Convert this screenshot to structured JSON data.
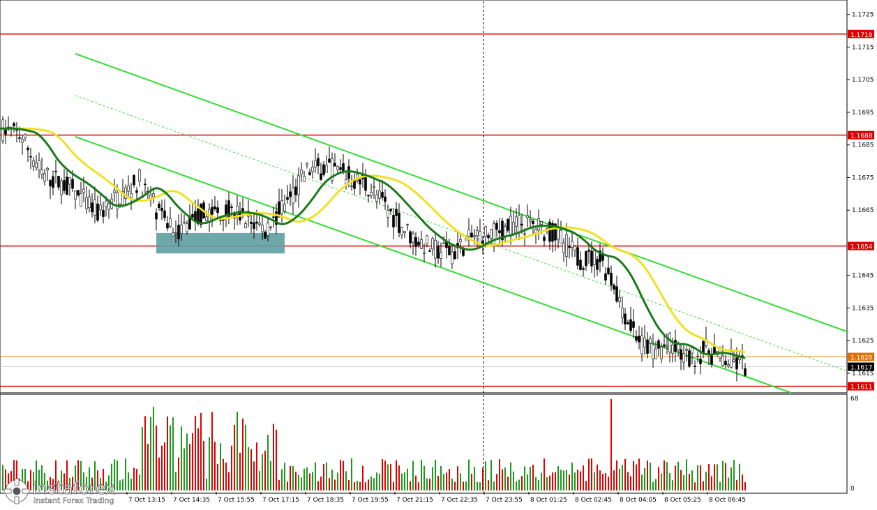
{
  "chart_data": {
    "type": "candlestick",
    "symbol_hint": "EUR/USD M5",
    "y_axis": {
      "min": 1.1609,
      "max": 1.1729,
      "ticks": [
        "1.1725",
        "1.1715",
        "1.1705",
        "1.1695",
        "1.1685",
        "1.1675",
        "1.1665",
        "1.1645",
        "1.1635",
        "1.1625",
        "1.1615"
      ]
    },
    "x_axis": {
      "ticks": [
        "7 Oct 13:15",
        "7 Oct 14:35",
        "7 Oct 15:55",
        "7 Oct 17:15",
        "7 Oct 18:35",
        "7 Oct 19:55",
        "7 Oct 21:15",
        "7 Oct 22:35",
        "7 Oct 23:55",
        "8 Oct 01:25",
        "8 Oct 02:45",
        "8 Oct 04:05",
        "8 Oct 05:25",
        "8 Oct 06:45"
      ]
    },
    "levels": [
      {
        "label": "1.1719",
        "value": 1.1719,
        "color": "#e00000"
      },
      {
        "label": "1.1688",
        "value": 1.1688,
        "color": "#e00000"
      },
      {
        "label": "1.1654",
        "value": 1.1654,
        "color": "#e00000"
      },
      {
        "label": "1.1611",
        "value": 1.1611,
        "color": "#e00000"
      }
    ],
    "current_price": {
      "label": "1.1617",
      "value": 1.1617
    },
    "alt_price": {
      "label": "1.1620",
      "value": 1.162,
      "color": "#e07000"
    },
    "ma_fast_color": "#1a7a1a",
    "ma_slow_color": "#f0e020",
    "channel_color": "#33dd33",
    "volume_axis": {
      "max_label": "68",
      "min_label": "0",
      "max": 68
    },
    "support_zone": {
      "from_price": 1.1653,
      "to_price": 1.1658,
      "color": "#5f9ea0"
    }
  },
  "brand": {
    "name": "instaforex",
    "tagline": "Instant Forex Trading"
  }
}
